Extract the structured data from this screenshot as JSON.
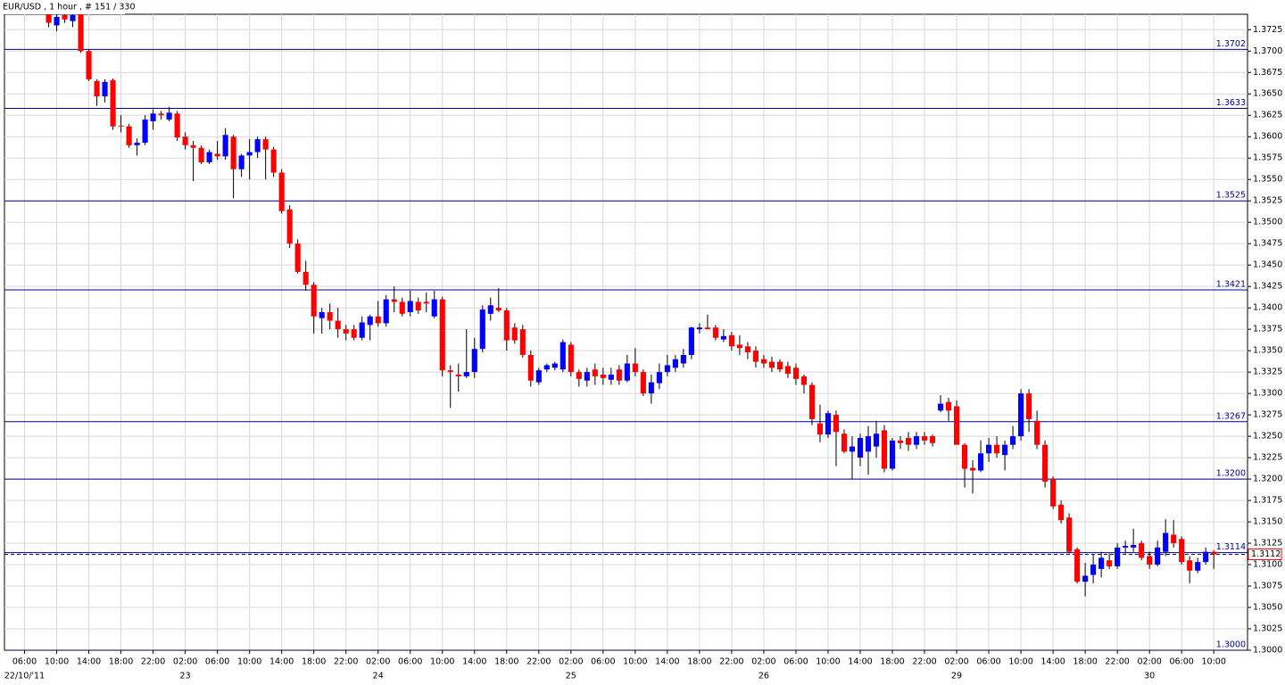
{
  "chart_data": {
    "type": "candlestick",
    "title": "EUR/USD , 1 hour , # 151 / 330",
    "open": [
      1.3743,
      1.373,
      1.3742,
      1.3735,
      1.3743,
      1.37,
      1.3665,
      1.3647,
      1.3666,
      1.3613,
      1.3612,
      1.359,
      1.3593,
      1.3618,
      1.3627,
      1.362,
      1.3627,
      1.36,
      1.359,
      1.3587,
      1.357,
      1.358,
      1.3577,
      1.36,
      1.3562,
      1.3578,
      1.3582,
      1.3597,
      1.3585,
      1.3558,
      1.3515,
      1.3475,
      1.3442,
      1.3427,
      1.3388,
      1.3395,
      1.3385,
      1.3375,
      1.3375,
      1.3365,
      1.338,
      1.339,
      1.3382,
      1.341,
      1.3407,
      1.3395,
      1.3407,
      1.3407,
      1.339,
      1.341,
      1.3327,
      1.3322,
      1.332,
      1.3325,
      1.3352,
      1.3393,
      1.34,
      1.3397,
      1.3377,
      1.3375,
      1.3345,
      1.3313,
      1.3328,
      1.333,
      1.3328,
      1.3357,
      1.3325,
      1.3315,
      1.3328,
      1.3322,
      1.3316,
      1.3328,
      1.3315,
      1.3335,
      1.3325,
      1.33,
      1.3312,
      1.3325,
      1.333,
      1.3335,
      1.3345,
      1.3375,
      1.3377,
      1.3377,
      1.3363,
      1.3368,
      1.3357,
      1.3355,
      1.335,
      1.334,
      1.3337,
      1.3337,
      1.3332,
      1.333,
      1.332,
      1.331,
      1.3265,
      1.3252,
      1.3275,
      1.3253,
      1.3232,
      1.3225,
      1.3232,
      1.3238,
      1.3257,
      1.3212,
      1.3245,
      1.3248,
      1.324,
      1.325,
      1.325,
      1.328,
      1.329,
      1.3285,
      1.324,
      1.3213,
      1.321,
      1.323,
      1.324,
      1.3228,
      1.324,
      1.325,
      1.33,
      1.3268,
      1.324,
      1.32,
      1.317,
      1.3155,
      1.3118,
      1.308,
      1.3088,
      1.3095,
      1.3105,
      1.3098,
      1.312,
      1.312,
      1.3125,
      1.311,
      1.31,
      1.3115,
      1.3135,
      1.313,
      1.3105,
      1.3093,
      1.3103,
      1.3115
    ],
    "high": [
      1.3745,
      1.3743,
      1.3745,
      1.3745,
      1.3745,
      1.3702,
      1.3667,
      1.3667,
      1.3668,
      1.3625,
      1.3615,
      1.3598,
      1.3625,
      1.3632,
      1.363,
      1.3635,
      1.363,
      1.3605,
      1.3595,
      1.359,
      1.3585,
      1.3595,
      1.361,
      1.3602,
      1.358,
      1.3597,
      1.36,
      1.36,
      1.3588,
      1.3562,
      1.352,
      1.348,
      1.3455,
      1.343,
      1.34,
      1.3405,
      1.34,
      1.338,
      1.338,
      1.339,
      1.3392,
      1.3408,
      1.3415,
      1.3425,
      1.3412,
      1.342,
      1.3412,
      1.3418,
      1.342,
      1.3413,
      1.3333,
      1.3335,
      1.3375,
      1.3365,
      1.3403,
      1.3412,
      1.3423,
      1.34,
      1.3382,
      1.338,
      1.335,
      1.333,
      1.3335,
      1.3337,
      1.3363,
      1.336,
      1.3328,
      1.333,
      1.3335,
      1.333,
      1.333,
      1.3333,
      1.3345,
      1.3353,
      1.3328,
      1.3322,
      1.3335,
      1.3345,
      1.3345,
      1.3352,
      1.3378,
      1.3382,
      1.3392,
      1.338,
      1.3375,
      1.3372,
      1.3368,
      1.336,
      1.3355,
      1.3345,
      1.3343,
      1.334,
      1.3337,
      1.3335,
      1.3322,
      1.3313,
      1.3287,
      1.328,
      1.328,
      1.3258,
      1.325,
      1.3253,
      1.3262,
      1.3268,
      1.3263,
      1.3248,
      1.325,
      1.3255,
      1.3255,
      1.3255,
      1.3252,
      1.3298,
      1.3295,
      1.3292,
      1.3242,
      1.3222,
      1.3245,
      1.3248,
      1.325,
      1.3245,
      1.3262,
      1.3305,
      1.3305,
      1.328,
      1.3245,
      1.3203,
      1.3175,
      1.316,
      1.312,
      1.3102,
      1.3112,
      1.3115,
      1.3113,
      1.3125,
      1.3128,
      1.3142,
      1.3128,
      1.3115,
      1.3128,
      1.3153,
      1.3152,
      1.3133,
      1.311,
      1.3108,
      1.312,
      1.3117
    ],
    "low": [
      1.3728,
      1.3723,
      1.3733,
      1.3728,
      1.3698,
      1.3665,
      1.3636,
      1.364,
      1.3608,
      1.3605,
      1.3587,
      1.3578,
      1.359,
      1.3608,
      1.362,
      1.3618,
      1.3595,
      1.3585,
      1.3548,
      1.3568,
      1.3568,
      1.3573,
      1.3573,
      1.3528,
      1.3553,
      1.355,
      1.3575,
      1.355,
      1.3553,
      1.351,
      1.347,
      1.344,
      1.342,
      1.337,
      1.337,
      1.3375,
      1.3365,
      1.3362,
      1.3362,
      1.3362,
      1.3362,
      1.3378,
      1.3378,
      1.3395,
      1.339,
      1.339,
      1.3393,
      1.3395,
      1.3388,
      1.332,
      1.3283,
      1.3302,
      1.3318,
      1.3318,
      1.3348,
      1.3385,
      1.3395,
      1.335,
      1.3358,
      1.3342,
      1.3308,
      1.331,
      1.3325,
      1.3327,
      1.3325,
      1.332,
      1.3308,
      1.3308,
      1.331,
      1.331,
      1.331,
      1.331,
      1.3313,
      1.332,
      1.3297,
      1.3288,
      1.3305,
      1.332,
      1.3325,
      1.333,
      1.334,
      1.337,
      1.3375,
      1.3362,
      1.336,
      1.335,
      1.3345,
      1.334,
      1.333,
      1.333,
      1.3325,
      1.3325,
      1.3318,
      1.331,
      1.33,
      1.3263,
      1.3243,
      1.3248,
      1.3215,
      1.323,
      1.32,
      1.3215,
      1.3205,
      1.3225,
      1.3208,
      1.321,
      1.3235,
      1.3233,
      1.3235,
      1.324,
      1.3238,
      1.3278,
      1.3268,
      1.324,
      1.319,
      1.3183,
      1.3208,
      1.322,
      1.3225,
      1.321,
      1.3235,
      1.3245,
      1.3255,
      1.3235,
      1.319,
      1.3165,
      1.3148,
      1.3113,
      1.3078,
      1.3063,
      1.3078,
      1.3085,
      1.3095,
      1.3095,
      1.3113,
      1.3115,
      1.3105,
      1.3095,
      1.3098,
      1.311,
      1.312,
      1.31,
      1.3078,
      1.309,
      1.31,
      1.3095
    ],
    "close": [
      1.3733,
      1.374,
      1.3737,
      1.3742,
      1.37,
      1.3667,
      1.3647,
      1.3664,
      1.3612,
      1.3612,
      1.359,
      1.3593,
      1.362,
      1.3627,
      1.3625,
      1.3628,
      1.3599,
      1.359,
      1.3587,
      1.357,
      1.3582,
      1.3577,
      1.3602,
      1.3562,
      1.3578,
      1.3582,
      1.3597,
      1.3585,
      1.3558,
      1.3513,
      1.3475,
      1.3442,
      1.3427,
      1.339,
      1.3395,
      1.3385,
      1.3375,
      1.337,
      1.3365,
      1.3383,
      1.339,
      1.3382,
      1.341,
      1.3407,
      1.3393,
      1.3408,
      1.3397,
      1.3405,
      1.341,
      1.3327,
      1.3325,
      1.332,
      1.3325,
      1.3352,
      1.3398,
      1.3403,
      1.3397,
      1.3362,
      1.3362,
      1.3345,
      1.3315,
      1.3327,
      1.3333,
      1.3335,
      1.336,
      1.3325,
      1.3317,
      1.3325,
      1.332,
      1.3318,
      1.3322,
      1.3315,
      1.3335,
      1.3325,
      1.33,
      1.3313,
      1.3325,
      1.3333,
      1.334,
      1.3345,
      1.3377,
      1.3377,
      1.3375,
      1.3365,
      1.3367,
      1.3355,
      1.3353,
      1.3348,
      1.3337,
      1.3335,
      1.333,
      1.3328,
      1.3323,
      1.3317,
      1.331,
      1.327,
      1.3252,
      1.3277,
      1.3255,
      1.3232,
      1.3238,
      1.3248,
      1.325,
      1.3253,
      1.3212,
      1.3245,
      1.3242,
      1.324,
      1.325,
      1.3245,
      1.3242,
      1.3288,
      1.328,
      1.324,
      1.3212,
      1.321,
      1.323,
      1.324,
      1.323,
      1.324,
      1.325,
      1.33,
      1.327,
      1.324,
      1.3197,
      1.3168,
      1.3152,
      1.3115,
      1.308,
      1.3087,
      1.31,
      1.3108,
      1.3098,
      1.312,
      1.3122,
      1.3123,
      1.3108,
      1.31,
      1.312,
      1.3137,
      1.3125,
      1.3103,
      1.3093,
      1.3103,
      1.3115,
      1.3112
    ],
    "up_color": "#0000ff",
    "down_color": "#ff0000",
    "level_color": "#00008b",
    "grid": true,
    "xlim": [
      -5.5,
      149.2
    ],
    "ylim": [
      1.3,
      1.3743
    ],
    "yticks": [
      {
        "value": 1.3,
        "label": "1.3000"
      },
      1.3025,
      {
        "value": 1.305,
        "label": "1.3050"
      },
      1.3075,
      {
        "value": 1.31,
        "label": "1.3100"
      },
      1.3125,
      {
        "value": 1.315,
        "label": "1.3150"
      },
      1.3175,
      {
        "value": 1.32,
        "label": "1.3200"
      },
      1.3225,
      {
        "value": 1.325,
        "label": "1.3250"
      },
      1.3275,
      {
        "value": 1.33,
        "label": "1.3300"
      },
      1.3325,
      {
        "value": 1.335,
        "label": "1.3350"
      },
      1.3375,
      {
        "value": 1.34,
        "label": "1.3400"
      },
      1.3425,
      {
        "value": 1.345,
        "label": "1.3450"
      },
      1.3475,
      {
        "value": 1.35,
        "label": "1.3500"
      },
      1.3525,
      {
        "value": 1.355,
        "label": "1.3550"
      },
      1.3575,
      {
        "value": 1.36,
        "label": "1.3600"
      },
      1.3625,
      {
        "value": 1.365,
        "label": "1.3650"
      },
      1.3675,
      {
        "value": 1.37,
        "label": "1.3700"
      },
      1.3725
    ],
    "xticks": [
      {
        "value": -3,
        "label": "06:00"
      },
      {
        "value": 1,
        "label": "10:00"
      },
      {
        "value": 5,
        "label": "14:00"
      },
      {
        "value": 9,
        "label": "18:00"
      },
      {
        "value": 13,
        "label": "22:00"
      },
      {
        "value": 17,
        "label": "02:00"
      },
      {
        "value": 21,
        "label": "06:00"
      },
      {
        "value": 25,
        "label": "10:00"
      },
      {
        "value": 29,
        "label": "14:00"
      },
      {
        "value": 33,
        "label": "18:00"
      },
      {
        "value": 37,
        "label": "22:00"
      },
      {
        "value": 41,
        "label": "02:00"
      },
      {
        "value": 45,
        "label": "06:00"
      },
      {
        "value": 49,
        "label": "10:00"
      },
      {
        "value": 53,
        "label": "14:00"
      },
      {
        "value": 57,
        "label": "18:00"
      },
      {
        "value": 61,
        "label": "22:00"
      },
      {
        "value": 65,
        "label": "02:00"
      },
      {
        "value": 69,
        "label": "06:00"
      },
      {
        "value": 73,
        "label": "10:00"
      },
      {
        "value": 77,
        "label": "14:00"
      },
      {
        "value": 81,
        "label": "18:00"
      },
      {
        "value": 85,
        "label": "22:00"
      },
      {
        "value": 89,
        "label": "02:00"
      },
      {
        "value": 93,
        "label": "06:00"
      },
      {
        "value": 97,
        "label": "10:00"
      },
      {
        "value": 101,
        "label": "14:00"
      },
      {
        "value": 105,
        "label": "18:00"
      },
      {
        "value": 109,
        "label": "22:00"
      },
      {
        "value": 113,
        "label": "02:00"
      },
      {
        "value": 117,
        "label": "06:00"
      },
      {
        "value": 121,
        "label": "10:00"
      },
      {
        "value": 125,
        "label": "14:00"
      },
      {
        "value": 129,
        "label": "18:00"
      },
      {
        "value": 133,
        "label": "22:00"
      },
      {
        "value": 137,
        "label": "02:00"
      },
      {
        "value": 141,
        "label": "06:00"
      },
      {
        "value": 145,
        "label": "10:00"
      }
    ],
    "date_ticks": [
      {
        "value": -3,
        "label": "22/10/'11"
      },
      {
        "value": 17,
        "label": "23"
      },
      {
        "value": 41,
        "label": "24"
      },
      {
        "value": 65,
        "label": "25"
      },
      {
        "value": 89,
        "label": "26"
      },
      {
        "value": 113,
        "label": "29"
      },
      {
        "value": 137,
        "label": "30"
      }
    ],
    "levels": [
      1.3702,
      1.3633,
      1.3525,
      1.3421,
      1.3267,
      {
        "value": 1.32,
        "label": "1.3200"
      },
      1.3114,
      {
        "value": 1.3,
        "label": "1.3000"
      }
    ],
    "last_price": 1.3112
  }
}
